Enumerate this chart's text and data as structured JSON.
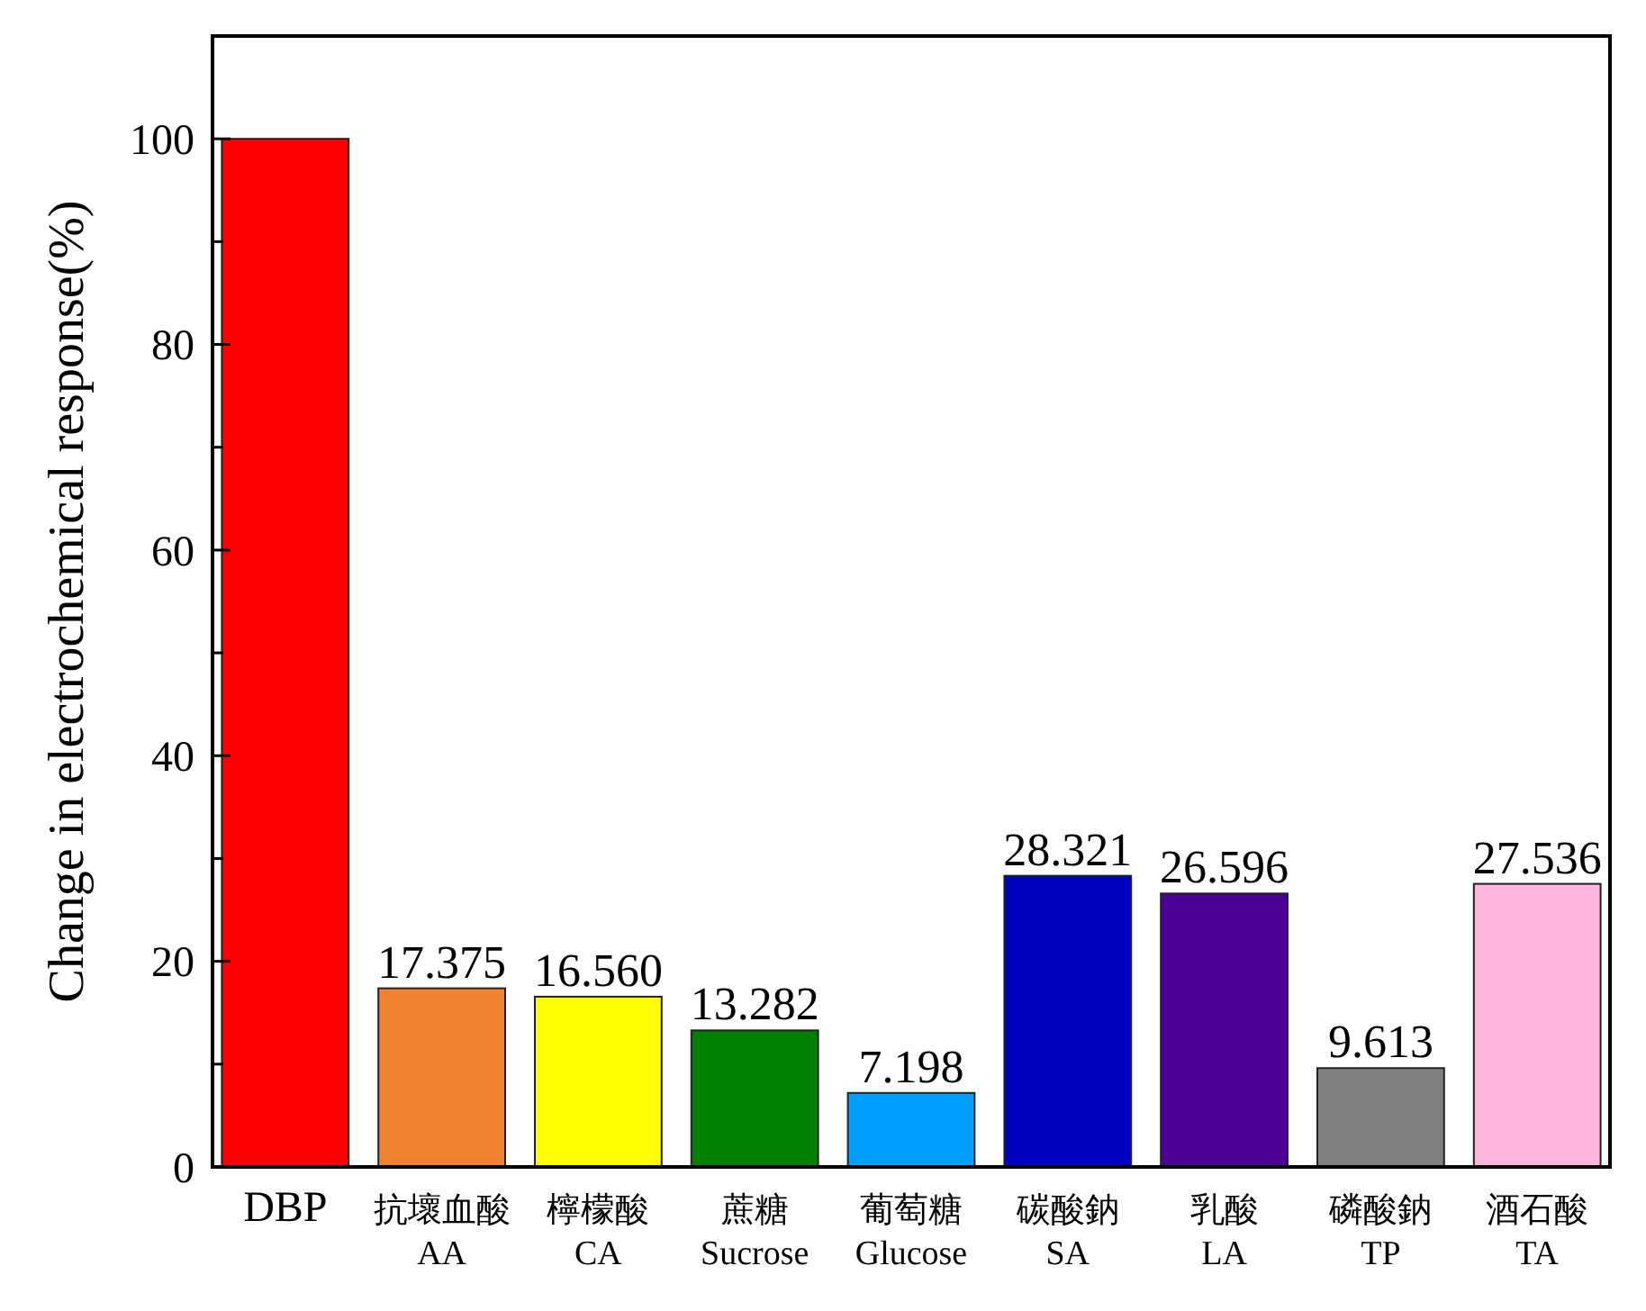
{
  "chart_data": {
    "type": "bar",
    "ylabel": "Change in electrochemical response(%)",
    "categories": [
      "DBP",
      "抗壞血酸\nAA",
      "檸檬酸\nCA",
      "蔗糖\nSucrose",
      "葡萄糖\nGlucose",
      "碳酸鈉\nSA",
      "乳酸\nLA",
      "磷酸鈉\nTP",
      "酒石酸\nTA"
    ],
    "values": [
      100,
      17.375,
      16.56,
      13.282,
      7.198,
      28.321,
      26.596,
      9.613,
      27.536
    ],
    "value_labels": [
      null,
      "17.375",
      "16.560",
      "13.282",
      "7.198",
      "28.321",
      "26.596",
      "9.613",
      "27.536"
    ],
    "colors": [
      "#ff0000",
      "#f08232",
      "#ffff00",
      "#008000",
      "#00a0ff",
      "#0000c0",
      "#4b0096",
      "#808080",
      "#ffb4dc"
    ],
    "ylim": [
      0,
      110
    ],
    "yticks": [
      0,
      {
        "value": 10,
        "label": null
      },
      20,
      {
        "value": 30,
        "label": null
      },
      40,
      {
        "value": 50,
        "label": null
      },
      60,
      {
        "value": 70,
        "label": null
      },
      80,
      {
        "value": 90,
        "label": null
      },
      100
    ],
    "grid": false
  }
}
